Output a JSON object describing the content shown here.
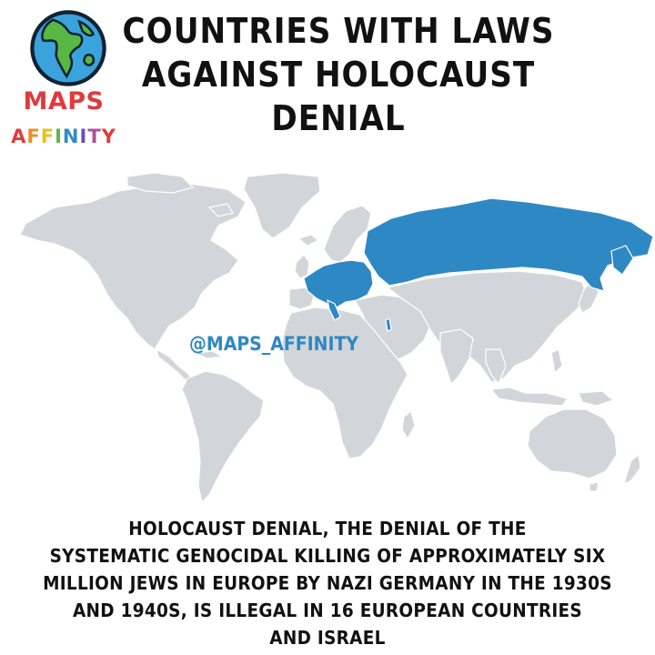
{
  "logo": {
    "icon": "globe-icon",
    "line1": "MAPS",
    "line2": "AFFINITY",
    "line1_color": "#e03a3e",
    "line2_colors": [
      "#e03a3e",
      "#ef8b2c",
      "#e8c21c",
      "#5fb54a",
      "#2f8bcb",
      "#6a4fb3",
      "#b04f9c",
      "#e03a3e"
    ]
  },
  "title": {
    "line1": "COUNTRIES WITH LAWS",
    "line2": "AGAINST HOLOCAUST",
    "line3": "DENIAL"
  },
  "map": {
    "colors": {
      "land": "#d2d6da",
      "highlighted": "#2e88c4",
      "background": "#ffffff"
    },
    "highlighted_regions": [
      "Russia",
      "Central and Western Europe"
    ],
    "watermark": "@MAPS_AFFINITY"
  },
  "description": {
    "lines": [
      "HOLOCAUST DENIAL, THE DENIAL OF THE",
      "SYSTEMATIC GENOCIDAL KILLING OF APPROXIMATELY SIX",
      "MILLION JEWS IN EUROPE BY NAZI GERMANY IN THE 1930S",
      "AND 1940S, IS ILLEGAL IN 16 EUROPEAN COUNTRIES",
      "AND ISRAEL"
    ]
  }
}
